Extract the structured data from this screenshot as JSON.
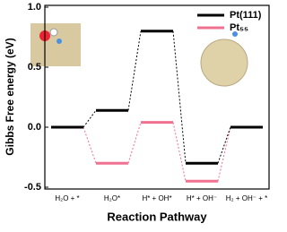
{
  "chart_data": {
    "type": "energy-diagram",
    "ylabel": "Gibbs Free energy (eV)",
    "xlabel": "Reaction Pathway",
    "categories": [
      "H₂O + *",
      "H₂O*",
      "H* + OH*",
      "H* + OH⁻",
      "H₂ + OH⁻ + *"
    ],
    "series": [
      {
        "name": "Pt(111)",
        "color": "#000000",
        "values": [
          0,
          0.14,
          0.8,
          -0.3,
          0
        ]
      },
      {
        "name": "Pt₅₅",
        "color": "#f07090",
        "values": [
          0,
          -0.3,
          0.04,
          -0.45,
          0
        ]
      }
    ],
    "ylim": [
      -0.5,
      1.0
    ],
    "yticks": [
      -0.5,
      {
        "value": 0,
        "label": "0.0"
      },
      0.5,
      {
        "value": 1,
        "label": "1.0"
      }
    ],
    "legend": "upper right"
  }
}
